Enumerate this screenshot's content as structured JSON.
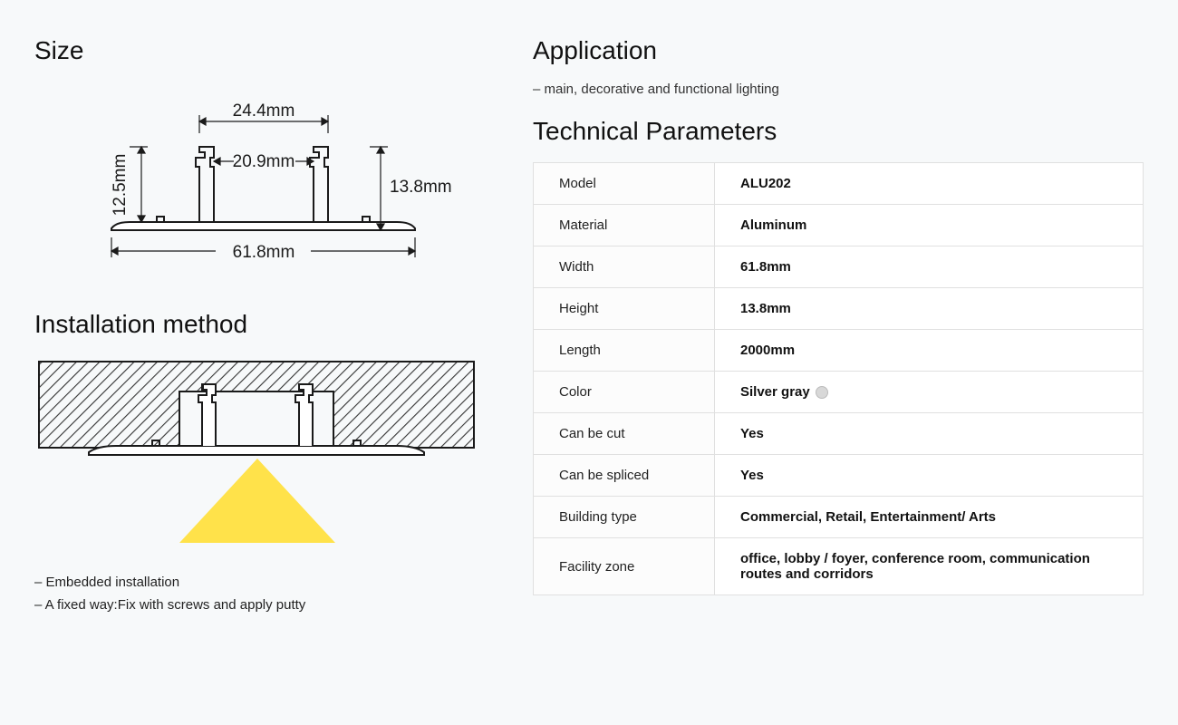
{
  "size": {
    "heading": "Size",
    "dims": {
      "top_width": "24.4mm",
      "inner_width": "20.9mm",
      "left_height": "12.5mm",
      "right_height": "13.8mm",
      "base_width": "61.8mm"
    },
    "diagram": {
      "stroke": "#1a1a1a",
      "stroke_width": 2,
      "font_size": 19
    }
  },
  "installation": {
    "heading": "Installation method",
    "bullets": [
      "– Embedded installation",
      "– A fixed way:Fix with screws and apply putty"
    ],
    "diagram": {
      "hatch_color": "#333333",
      "profile_stroke": "#1a1a1a",
      "light_color": "#ffe24a",
      "background": "#ffffff"
    }
  },
  "application": {
    "heading": "Application",
    "text": "– main, decorative and functional lighting"
  },
  "technical": {
    "heading": "Technical Parameters",
    "rows": [
      {
        "label": "Model",
        "value": "ALU202"
      },
      {
        "label": "Material",
        "value": "Aluminum"
      },
      {
        "label": "Width",
        "value": "61.8mm"
      },
      {
        "label": "Height",
        "value": "13.8mm"
      },
      {
        "label": "Length",
        "value": "2000mm"
      },
      {
        "label": "Color",
        "value": "Silver gray",
        "swatch": true
      },
      {
        "label": "Can be cut",
        "value": "Yes"
      },
      {
        "label": "Can be spliced",
        "value": "Yes"
      },
      {
        "label": "Building type",
        "value": "Commercial, Retail, Entertainment/ Arts"
      },
      {
        "label": "Facility zone",
        "value": "office, lobby / foyer, conference room, communication routes and corridors"
      }
    ],
    "table_style": {
      "border_color": "#e0e0e0",
      "label_bg": "#fcfcfc",
      "value_bg": "#ffffff",
      "font_size": 15
    }
  },
  "page": {
    "background": "#f7f9fa",
    "heading_fontsize": 28,
    "body_fontsize": 15
  }
}
